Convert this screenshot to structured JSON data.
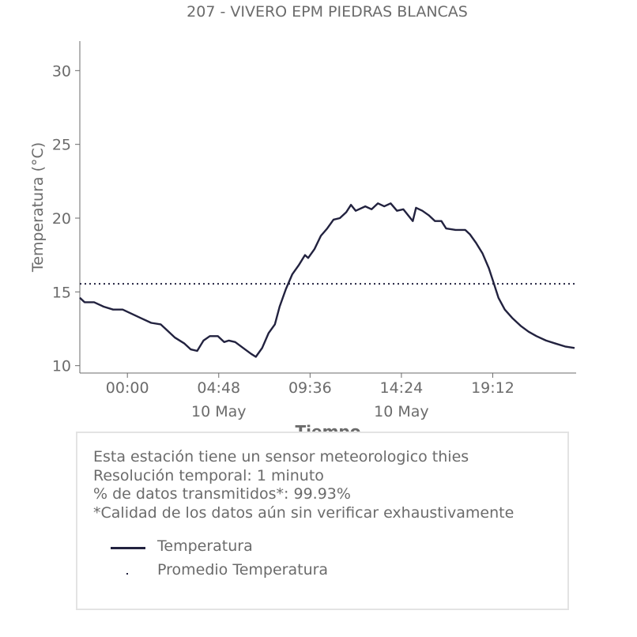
{
  "chart_data": {
    "type": "line",
    "title": "207 - VIVERO EPM PIEDRAS BLANCAS",
    "xlabel": "Tiempo",
    "ylabel": "Temperatura (°C)",
    "ylim": [
      9.5,
      32
    ],
    "xlim": [
      "2024-05-09 21:30",
      "2024-05-10 23:35"
    ],
    "yticks": [
      10,
      15,
      20,
      25,
      30
    ],
    "xticks": [
      {
        "time": "00:00",
        "date": "",
        "at": "2024-05-10 00:00"
      },
      {
        "time": "04:48",
        "date": "10 May",
        "at": "2024-05-10 04:48"
      },
      {
        "time": "09:36",
        "date": "",
        "at": "2024-05-10 09:36"
      },
      {
        "time": "14:24",
        "date": "10 May",
        "at": "2024-05-10 14:24"
      },
      {
        "time": "19:12",
        "date": "",
        "at": "2024-05-10 19:12"
      }
    ],
    "grid": false,
    "series": [
      {
        "name": "Temperatura",
        "color": "#22223f",
        "style": "solid",
        "points": [
          [
            "2024-05-09 21:30",
            14.6
          ],
          [
            "2024-05-09 21:45",
            14.3
          ],
          [
            "2024-05-09 22:15",
            14.3
          ],
          [
            "2024-05-09 22:45",
            14.0
          ],
          [
            "2024-05-09 23:15",
            13.8
          ],
          [
            "2024-05-09 23:45",
            13.8
          ],
          [
            "2024-05-10 00:15",
            13.5
          ],
          [
            "2024-05-10 00:45",
            13.2
          ],
          [
            "2024-05-10 01:15",
            12.9
          ],
          [
            "2024-05-10 01:45",
            12.8
          ],
          [
            "2024-05-10 02:05",
            12.4
          ],
          [
            "2024-05-10 02:30",
            11.9
          ],
          [
            "2024-05-10 03:00",
            11.5
          ],
          [
            "2024-05-10 03:20",
            11.1
          ],
          [
            "2024-05-10 03:40",
            11.0
          ],
          [
            "2024-05-10 04:00",
            11.7
          ],
          [
            "2024-05-10 04:20",
            12.0
          ],
          [
            "2024-05-10 04:45",
            12.0
          ],
          [
            "2024-05-10 05:05",
            11.6
          ],
          [
            "2024-05-10 05:20",
            11.7
          ],
          [
            "2024-05-10 05:40",
            11.6
          ],
          [
            "2024-05-10 06:05",
            11.2
          ],
          [
            "2024-05-10 06:30",
            10.8
          ],
          [
            "2024-05-10 06:45",
            10.6
          ],
          [
            "2024-05-10 07:05",
            11.2
          ],
          [
            "2024-05-10 07:25",
            12.2
          ],
          [
            "2024-05-10 07:45",
            12.8
          ],
          [
            "2024-05-10 08:00",
            14.0
          ],
          [
            "2024-05-10 08:20",
            15.2
          ],
          [
            "2024-05-10 08:40",
            16.2
          ],
          [
            "2024-05-10 09:00",
            16.8
          ],
          [
            "2024-05-10 09:20",
            17.5
          ],
          [
            "2024-05-10 09:30",
            17.3
          ],
          [
            "2024-05-10 09:50",
            17.9
          ],
          [
            "2024-05-10 10:10",
            18.8
          ],
          [
            "2024-05-10 10:30",
            19.3
          ],
          [
            "2024-05-10 10:50",
            19.9
          ],
          [
            "2024-05-10 11:10",
            20.0
          ],
          [
            "2024-05-10 11:30",
            20.4
          ],
          [
            "2024-05-10 11:45",
            20.9
          ],
          [
            "2024-05-10 12:00",
            20.5
          ],
          [
            "2024-05-10 12:30",
            20.8
          ],
          [
            "2024-05-10 12:50",
            20.6
          ],
          [
            "2024-05-10 13:10",
            21.0
          ],
          [
            "2024-05-10 13:30",
            20.8
          ],
          [
            "2024-05-10 13:50",
            21.0
          ],
          [
            "2024-05-10 14:10",
            20.5
          ],
          [
            "2024-05-10 14:30",
            20.6
          ],
          [
            "2024-05-10 14:45",
            20.2
          ],
          [
            "2024-05-10 15:00",
            19.8
          ],
          [
            "2024-05-10 15:10",
            20.7
          ],
          [
            "2024-05-10 15:30",
            20.5
          ],
          [
            "2024-05-10 15:50",
            20.2
          ],
          [
            "2024-05-10 16:10",
            19.8
          ],
          [
            "2024-05-10 16:30",
            19.8
          ],
          [
            "2024-05-10 16:45",
            19.3
          ],
          [
            "2024-05-10 17:15",
            19.2
          ],
          [
            "2024-05-10 17:45",
            19.2
          ],
          [
            "2024-05-10 18:00",
            18.9
          ],
          [
            "2024-05-10 18:20",
            18.3
          ],
          [
            "2024-05-10 18:40",
            17.6
          ],
          [
            "2024-05-10 19:00",
            16.6
          ],
          [
            "2024-05-10 19:15",
            15.6
          ],
          [
            "2024-05-10 19:30",
            14.6
          ],
          [
            "2024-05-10 19:50",
            13.8
          ],
          [
            "2024-05-10 20:15",
            13.2
          ],
          [
            "2024-05-10 20:40",
            12.7
          ],
          [
            "2024-05-10 21:05",
            12.3
          ],
          [
            "2024-05-10 21:30",
            12.0
          ],
          [
            "2024-05-10 22:00",
            11.7
          ],
          [
            "2024-05-10 22:30",
            11.5
          ],
          [
            "2024-05-10 23:00",
            11.3
          ],
          [
            "2024-05-10 23:30",
            11.2
          ]
        ]
      },
      {
        "name": "Promedio Temperatura",
        "color": "#22223f",
        "style": "dotted",
        "value": 15.55
      }
    ]
  },
  "info": {
    "lines": [
      "Esta estación tiene un sensor meteorologico thies",
      "Resolución temporal: 1 minuto",
      "% de datos transmitidos*: 99.93%",
      "*Calidad de los datos aún sin verificar exhaustivamente"
    ]
  },
  "legend": {
    "items": [
      {
        "label": "Temperatura",
        "marker": "line"
      },
      {
        "label": "Promedio Temperatura",
        "marker": "dot"
      }
    ]
  }
}
